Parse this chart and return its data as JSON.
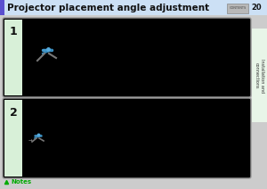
{
  "title": "Projector placement angle adjustment",
  "title_bg": "#cce0f5",
  "title_bar_color": "#5b4fcf",
  "page_num": "20",
  "contents_btn_text": "CONTENTS",
  "side_tab_text": "Installation and\nconnections",
  "side_tab_bg": "#e8f5e8",
  "side_tab_text_color": "#333333",
  "box1_label": "1",
  "box2_label": "2",
  "box_bg": "#000000",
  "box_border": "#999999",
  "notes_text": "Notes",
  "notes_color": "#00aa00",
  "overall_bg": "#cccccc"
}
